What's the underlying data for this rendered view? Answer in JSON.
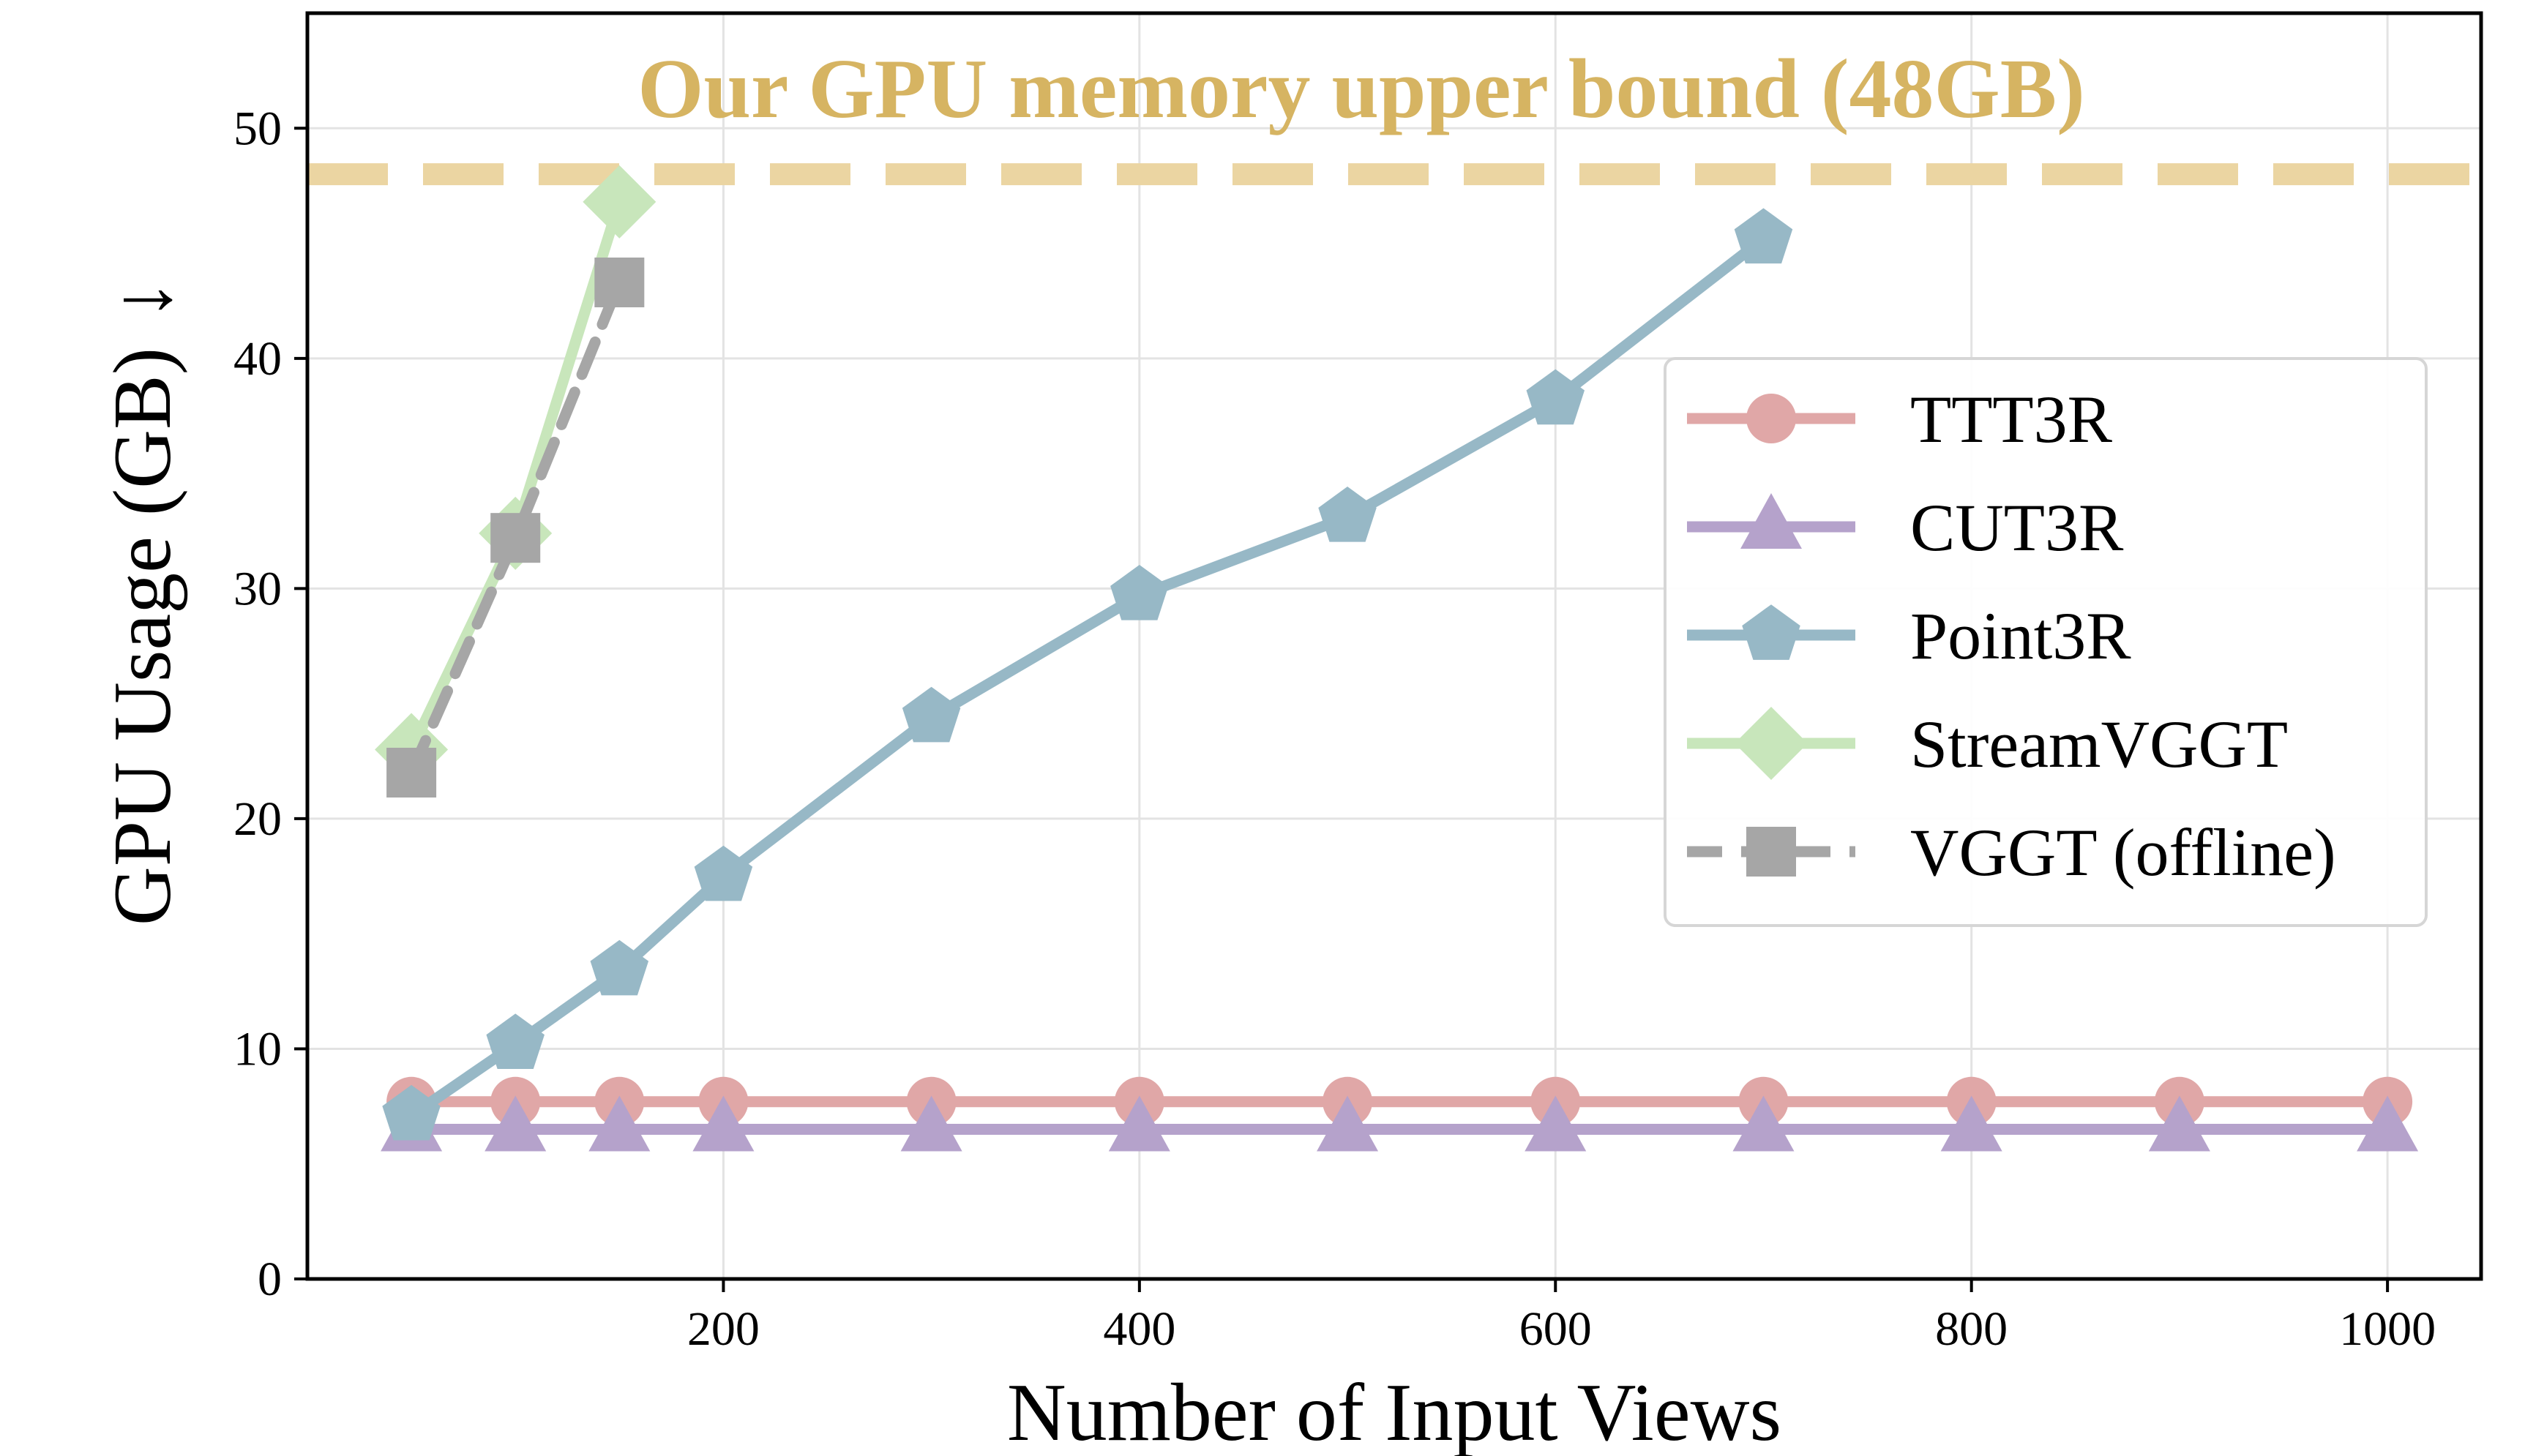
{
  "chart_data": {
    "type": "line",
    "xlabel": "Number of Input Views",
    "ylabel": "GPU Usage (GB)",
    "ylabel_arrow": "↓",
    "xlim": [
      0,
      1045
    ],
    "ylim": [
      0,
      55
    ],
    "xticks": [
      200,
      400,
      600,
      800,
      1000
    ],
    "yticks": [
      0,
      10,
      20,
      30,
      40,
      50
    ],
    "grid": true,
    "legend_position": "center-right",
    "annotations": [
      {
        "text": "Our GPU memory upper bound (48GB)",
        "y": 48,
        "color": "#d6b462",
        "line_color": "#ebd5a2",
        "style": "dashed"
      }
    ],
    "series": [
      {
        "name": "TTT3R",
        "color": "#e0a7a7",
        "marker": "circle",
        "linestyle": "solid",
        "x": [
          50,
          100,
          150,
          200,
          300,
          400,
          500,
          600,
          700,
          800,
          900,
          1000
        ],
        "y": [
          7.7,
          7.7,
          7.7,
          7.7,
          7.7,
          7.7,
          7.7,
          7.7,
          7.7,
          7.7,
          7.7,
          7.7
        ]
      },
      {
        "name": "CUT3R",
        "color": "#b5a2cb",
        "marker": "triangle",
        "linestyle": "solid",
        "x": [
          50,
          100,
          150,
          200,
          300,
          400,
          500,
          600,
          700,
          800,
          900,
          1000
        ],
        "y": [
          6.5,
          6.5,
          6.5,
          6.5,
          6.5,
          6.5,
          6.5,
          6.5,
          6.5,
          6.5,
          6.5,
          6.5
        ]
      },
      {
        "name": "Point3R",
        "color": "#97b8c6",
        "marker": "pentagon",
        "linestyle": "solid",
        "x": [
          50,
          100,
          150,
          200,
          300,
          400,
          500,
          600,
          700
        ],
        "y": [
          7.1,
          10.2,
          13.4,
          17.5,
          24.4,
          29.7,
          33.1,
          38.2,
          45.2
        ]
      },
      {
        "name": "StreamVGGT",
        "color": "#c8e6bb",
        "marker": "diamond",
        "linestyle": "solid",
        "x": [
          50,
          100,
          150
        ],
        "y": [
          23.0,
          32.4,
          46.8
        ]
      },
      {
        "name": "VGGT (offline)",
        "color": "#a6a6a6",
        "marker": "square",
        "linestyle": "dashed",
        "x": [
          50,
          100,
          150
        ],
        "y": [
          22.0,
          32.2,
          43.3
        ]
      }
    ]
  }
}
